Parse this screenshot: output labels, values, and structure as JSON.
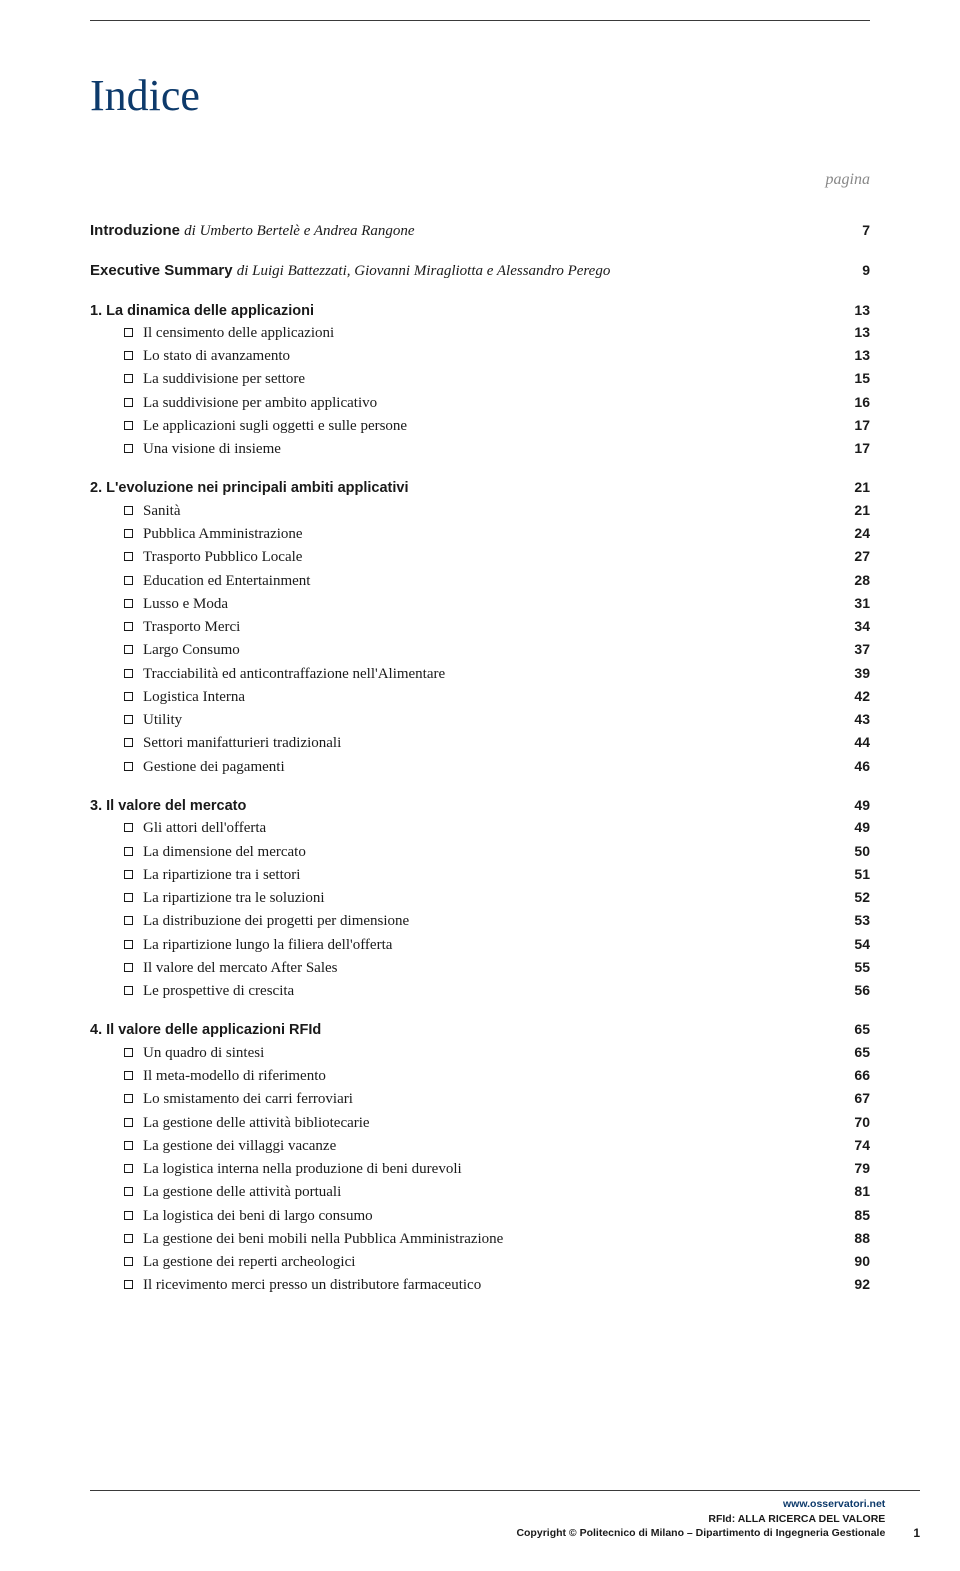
{
  "page": {
    "title": "Indice",
    "pagina_label": "pagina",
    "footer": {
      "link": "www.osservatori.net",
      "subtitle": "RFId: ALLA RICERCA DEL VALORE",
      "copyright": "Copyright © Politecnico di Milano – Dipartimento di Ingegneria Gestionale",
      "page_number": "1"
    }
  },
  "intro_rows": [
    {
      "bold": "Introduzione ",
      "italic": "di Umberto Bertelè e Andrea Rangone",
      "page": "7"
    },
    {
      "bold": "Executive Summary ",
      "italic": "di Luigi Battezzati, Giovanni Miragliotta e Alessandro Perego",
      "page": "9"
    }
  ],
  "sections": [
    {
      "heading": "1. La dinamica delle applicazioni",
      "page": "13",
      "items": [
        {
          "label": "Il censimento delle applicazioni",
          "page": "13"
        },
        {
          "label": "Lo stato di avanzamento",
          "page": "13"
        },
        {
          "label": "La suddivisione per settore",
          "page": "15"
        },
        {
          "label": "La suddivisione per ambito applicativo",
          "page": "16"
        },
        {
          "label": "Le applicazioni sugli oggetti e sulle persone",
          "page": "17"
        },
        {
          "label": "Una visione di insieme",
          "page": "17"
        }
      ]
    },
    {
      "heading": "2. L'evoluzione nei principali ambiti applicativi",
      "page": "21",
      "items": [
        {
          "label": "Sanità",
          "page": "21"
        },
        {
          "label": "Pubblica Amministrazione",
          "page": "24"
        },
        {
          "label": "Trasporto Pubblico Locale",
          "page": "27"
        },
        {
          "label": "Education ed Entertainment",
          "page": "28"
        },
        {
          "label": "Lusso e Moda",
          "page": "31"
        },
        {
          "label": "Trasporto Merci",
          "page": "34"
        },
        {
          "label": "Largo Consumo",
          "page": "37"
        },
        {
          "label": "Tracciabilità ed anticontraffazione nell'Alimentare",
          "page": "39"
        },
        {
          "label": "Logistica Interna",
          "page": "42"
        },
        {
          "label": "Utility",
          "page": "43"
        },
        {
          "label": "Settori manifatturieri tradizionali",
          "page": "44"
        },
        {
          "label": "Gestione dei pagamenti",
          "page": "46"
        }
      ]
    },
    {
      "heading": "3. Il valore del mercato",
      "page": "49",
      "items": [
        {
          "label": "Gli attori dell'offerta",
          "page": "49"
        },
        {
          "label": "La dimensione del mercato",
          "page": "50"
        },
        {
          "label": "La ripartizione tra i settori",
          "page": "51"
        },
        {
          "label": "La ripartizione tra le soluzioni",
          "page": "52"
        },
        {
          "label": "La distribuzione dei progetti per dimensione",
          "page": "53"
        },
        {
          "label": "La ripartizione lungo la filiera dell'offerta",
          "page": "54"
        },
        {
          "label": "Il valore del mercato After Sales",
          "page": "55"
        },
        {
          "label": "Le prospettive di crescita",
          "page": "56"
        }
      ]
    },
    {
      "heading": "4. Il valore delle applicazioni RFId",
      "page": "65",
      "items": [
        {
          "label": "Un quadro di sintesi",
          "page": "65"
        },
        {
          "label": "Il meta-modello di riferimento",
          "page": "66"
        },
        {
          "label": "Lo smistamento dei carri ferroviari",
          "page": "67"
        },
        {
          "label": "La gestione delle attività bibliotecarie",
          "page": "70"
        },
        {
          "label": "La gestione dei villaggi vacanze",
          "page": "74"
        },
        {
          "label": "La logistica interna nella produzione di beni durevoli",
          "page": "79"
        },
        {
          "label": "La gestione delle attività portuali",
          "page": "81"
        },
        {
          "label": "La logistica dei beni di largo consumo",
          "page": "85"
        },
        {
          "label": "La gestione dei beni mobili nella Pubblica Amministrazione",
          "page": "88"
        },
        {
          "label": "La gestione dei reperti archeologici",
          "page": "90"
        },
        {
          "label": "Il ricevimento merci presso un distributore farmaceutico",
          "page": "92"
        }
      ]
    }
  ]
}
